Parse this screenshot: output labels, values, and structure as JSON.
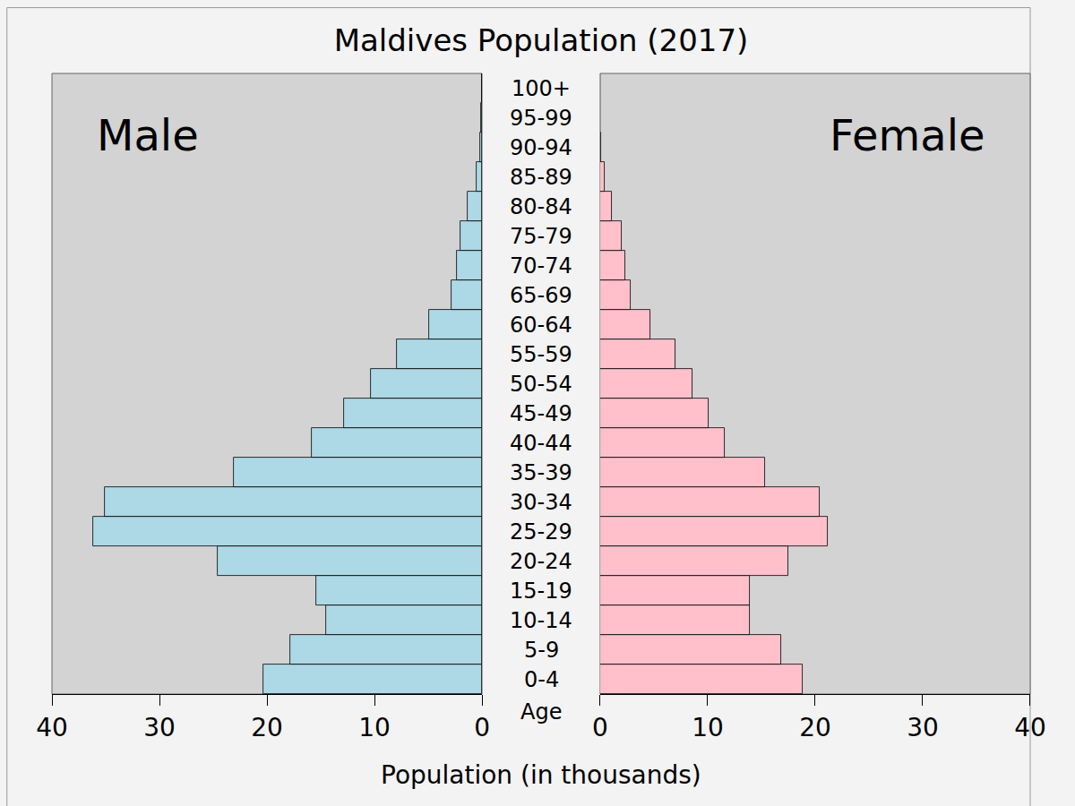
{
  "chart_data": {
    "type": "bar",
    "orientation": "horizontal",
    "title": "Maldives Population (2017)",
    "xlabel": "Population (in thousands)",
    "ylabel": "Age",
    "categories": [
      "0-4",
      "5-9",
      "10-14",
      "15-19",
      "20-24",
      "25-29",
      "30-34",
      "35-39",
      "40-44",
      "45-49",
      "50-54",
      "55-59",
      "60-64",
      "65-69",
      "70-74",
      "75-79",
      "80-84",
      "85-89",
      "90-94",
      "95-99",
      "100+"
    ],
    "series": [
      {
        "name": "Male",
        "color": "#add8e6",
        "values": [
          20.3,
          17.8,
          14.5,
          15.4,
          24.6,
          36.2,
          35.1,
          23.1,
          15.8,
          12.8,
          10.3,
          7.9,
          4.9,
          2.8,
          2.3,
          2.0,
          1.3,
          0.5,
          0.2,
          0.05,
          0.01
        ]
      },
      {
        "name": "Female",
        "color": "#ffc0cb",
        "values": [
          18.8,
          16.8,
          13.9,
          13.9,
          17.5,
          21.2,
          20.4,
          15.3,
          11.6,
          10.1,
          8.6,
          7.0,
          4.7,
          2.8,
          2.3,
          2.0,
          1.1,
          0.4,
          0.1,
          0.03,
          0.01
        ]
      }
    ],
    "xlim": [
      0,
      40
    ],
    "xticks": [
      0,
      10,
      20,
      30,
      40
    ],
    "grid": false
  }
}
